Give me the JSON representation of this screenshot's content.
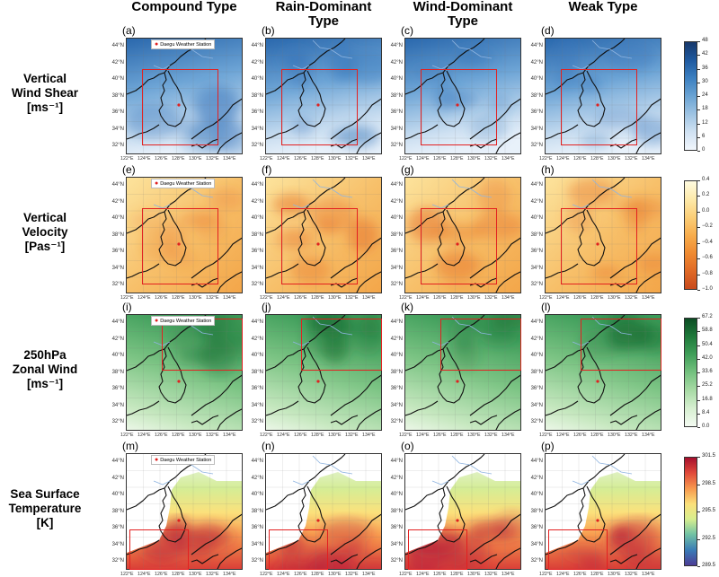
{
  "columns": [
    {
      "title": "Compound Type"
    },
    {
      "title": "Rain-Dominant Type"
    },
    {
      "title": "Wind-Dominant Type"
    },
    {
      "title": "Weak Type"
    }
  ],
  "rows": [
    {
      "label_lines": [
        "Vertical",
        "Wind Shear",
        "[ms⁻¹]"
      ],
      "var": "shear",
      "panel_labels": [
        "(a)",
        "(b)",
        "(c)",
        "(d)"
      ],
      "colorbar": {
        "ticks": [
          "48",
          "42",
          "36",
          "30",
          "24",
          "18",
          "12",
          "6",
          "0"
        ],
        "colors": [
          "#17386b",
          "#1f5aa0",
          "#3b7fc0",
          "#6aa3d3",
          "#9fc4e3",
          "#cfe1f2",
          "#f1f6fc"
        ]
      }
    },
    {
      "label_lines": [
        "Vertical",
        "Velocity",
        "[Pas⁻¹]"
      ],
      "var": "omega",
      "panel_labels": [
        "(e)",
        "(f)",
        "(g)",
        "(h)"
      ],
      "colorbar": {
        "ticks": [
          "0.4",
          "0.2",
          "0.0",
          "−0.2",
          "−0.4",
          "−0.6",
          "−0.8",
          "−1.0"
        ],
        "colors": [
          "#fffbe0",
          "#fde9a9",
          "#fbcf79",
          "#f8ad4c",
          "#ef8a31",
          "#e06a26",
          "#c84a1c"
        ]
      }
    },
    {
      "label_lines": [
        "250hPa",
        "Zonal Wind",
        "[ms⁻¹]"
      ],
      "var": "u250",
      "panel_labels": [
        "(i)",
        "(j)",
        "(k)",
        "(l)"
      ],
      "colorbar": {
        "ticks": [
          "67.2",
          "58.8",
          "50.4",
          "42.0",
          "33.6",
          "25.2",
          "16.8",
          "8.4",
          "0.0"
        ],
        "colors": [
          "#0b4d23",
          "#1f7a3b",
          "#3f9e58",
          "#74c17f",
          "#a9dba6",
          "#d6efd0",
          "#f4fbf2"
        ]
      }
    },
    {
      "label_lines": [
        "Sea Surface",
        "Temperature",
        "[K]"
      ],
      "var": "sst",
      "panel_labels": [
        "(m)",
        "(n)",
        "(o)",
        "(p)"
      ],
      "colorbar": {
        "ticks": [
          "301.5",
          "298.5",
          "295.5",
          "292.5",
          "289.5"
        ],
        "colors": [
          "#a50f2d",
          "#e0483a",
          "#f79a4e",
          "#fbe07a",
          "#d8ee8e",
          "#72c3a4",
          "#3a7bb6",
          "#4b3c95"
        ]
      }
    }
  ],
  "map": {
    "lat_ticks": [
      "44°N",
      "42°N",
      "40°N",
      "38°N",
      "36°N",
      "34°N",
      "32°N"
    ],
    "lon_ticks": [
      "122°E",
      "124°E",
      "126°E",
      "128°E",
      "130°E",
      "132°E",
      "134°E"
    ],
    "legend_label": "Daegu Weather Station",
    "marker_color": "#e02020",
    "box_color": "#e32020"
  }
}
